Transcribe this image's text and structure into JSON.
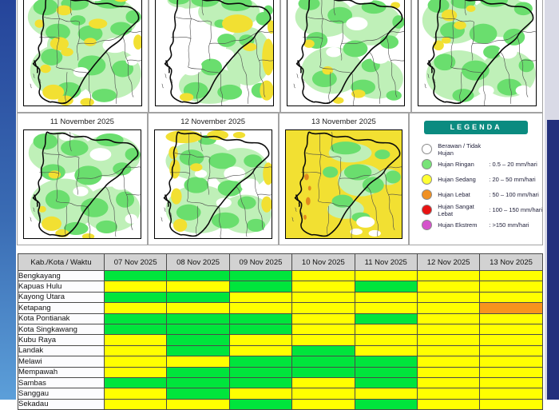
{
  "map_titles": {
    "row2": [
      "11 November 2025",
      "12 November 2025",
      "13 November 2025"
    ]
  },
  "map_colors": {
    "pale": "#bff0b8",
    "green": "#6ade6e",
    "yellow": "#f2e032",
    "orange": "#e08a1e",
    "white": "#ffffff"
  },
  "legend": {
    "title": "LEGENDA",
    "header_color": "#0b8b80",
    "items": [
      {
        "label": "Berawan / Tidak Hujan",
        "value": "",
        "color": "#ffffff"
      },
      {
        "label": "Hujan Ringan",
        "value": ": 0.5 – 20 mm/hari",
        "color": "#77e377"
      },
      {
        "label": "Hujan Sedang",
        "value": ": 20 – 50 mm/hari",
        "color": "#ffff33"
      },
      {
        "label": "Hujan Lebat",
        "value": ": 50 – 100 mm/hari",
        "color": "#f09022"
      },
      {
        "label": "Hujan Sangat Lebat",
        "value": ": 100 – 150 mm/hari",
        "color": "#e81212"
      },
      {
        "label": "Hujan Ekstrem",
        "value": ": >150 mm/hari",
        "color": "#d553cb"
      }
    ]
  },
  "forecast_table": {
    "columns": [
      "Kab./Kota / Waktu",
      "07 Nov 2025",
      "08 Nov 2025",
      "09 Nov 2025",
      "10 Nov 2025",
      "11 Nov 2025",
      "12 Nov 2025",
      "13 Nov 2025"
    ],
    "category_colors": {
      "ringan": "#00e53c",
      "sedang": "#ffff00",
      "lebat": "#f7941d"
    },
    "rows": [
      {
        "name": "Bengkayang",
        "cells": [
          "ringan",
          "ringan",
          "ringan",
          "sedang",
          "sedang",
          "sedang",
          "sedang"
        ]
      },
      {
        "name": "Kapuas Hulu",
        "cells": [
          "sedang",
          "sedang",
          "ringan",
          "sedang",
          "ringan",
          "sedang",
          "sedang"
        ]
      },
      {
        "name": "Kayong Utara",
        "cells": [
          "ringan",
          "ringan",
          "sedang",
          "sedang",
          "sedang",
          "sedang",
          "sedang"
        ]
      },
      {
        "name": "Ketapang",
        "cells": [
          "sedang",
          "sedang",
          "sedang",
          "sedang",
          "sedang",
          "sedang",
          "lebat"
        ]
      },
      {
        "name": "Kota Pontianak",
        "cells": [
          "ringan",
          "ringan",
          "ringan",
          "sedang",
          "ringan",
          "sedang",
          "sedang"
        ]
      },
      {
        "name": "Kota Singkawang",
        "cells": [
          "ringan",
          "ringan",
          "ringan",
          "sedang",
          "sedang",
          "sedang",
          "sedang"
        ]
      },
      {
        "name": "Kubu Raya",
        "cells": [
          "sedang",
          "ringan",
          "sedang",
          "sedang",
          "sedang",
          "sedang",
          "sedang"
        ]
      },
      {
        "name": "Landak",
        "cells": [
          "sedang",
          "ringan",
          "sedang",
          "ringan",
          "sedang",
          "sedang",
          "sedang"
        ]
      },
      {
        "name": "Melawi",
        "cells": [
          "sedang",
          "sedang",
          "ringan",
          "ringan",
          "ringan",
          "sedang",
          "sedang"
        ]
      },
      {
        "name": "Mempawah",
        "cells": [
          "sedang",
          "ringan",
          "ringan",
          "ringan",
          "ringan",
          "sedang",
          "sedang"
        ]
      },
      {
        "name": "Sambas",
        "cells": [
          "ringan",
          "ringan",
          "ringan",
          "sedang",
          "ringan",
          "sedang",
          "sedang"
        ]
      },
      {
        "name": "Sanggau",
        "cells": [
          "sedang",
          "ringan",
          "sedang",
          "sedang",
          "sedang",
          "sedang",
          "sedang"
        ]
      },
      {
        "name": "Sekadau",
        "cells": [
          "sedang",
          "sedang",
          "ringan",
          "sedang",
          "ringan",
          "sedang",
          "sedang"
        ]
      }
    ]
  }
}
